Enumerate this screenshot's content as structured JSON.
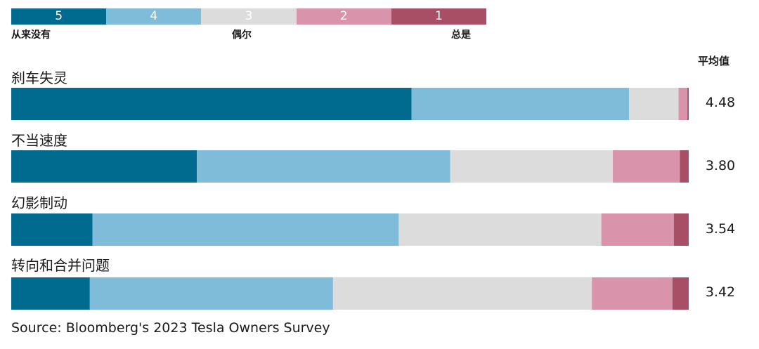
{
  "legend": {
    "items": [
      {
        "score": "5",
        "color": "#006b8f"
      },
      {
        "score": "4",
        "color": "#7ebcd9"
      },
      {
        "score": "3",
        "color": "#dcdcdc"
      },
      {
        "score": "2",
        "color": "#d993ab"
      },
      {
        "score": "1",
        "color": "#a84f65"
      }
    ],
    "label_never": "从来没有",
    "label_sometimes": "偶尔",
    "label_always": "总是"
  },
  "avg_header": "平均值",
  "source": "Source: Bloomberg's 2023 Tesla Owners Survey",
  "chart_data": {
    "type": "bar",
    "orientation": "horizontal",
    "stacked": true,
    "unit": "percent of respondents",
    "categories": [
      "刹车失灵",
      "不当速度",
      "幻影制动",
      "转向和合并问题"
    ],
    "series": [
      {
        "name": "5",
        "color": "#006b8f",
        "values": [
          59.1,
          27.4,
          12.0,
          11.6
        ]
      },
      {
        "name": "4",
        "color": "#7ebcd9",
        "values": [
          32.1,
          37.4,
          45.2,
          35.9
        ]
      },
      {
        "name": "3",
        "color": "#dcdcdc",
        "values": [
          7.3,
          24.0,
          29.9,
          38.2
        ]
      },
      {
        "name": "2",
        "color": "#d993ab",
        "values": [
          1.3,
          9.9,
          10.7,
          11.9
        ]
      },
      {
        "name": "1",
        "color": "#a84f65",
        "values": [
          0.2,
          1.3,
          2.2,
          2.4
        ]
      }
    ],
    "averages": [
      "4.48",
      "3.80",
      "3.54",
      "3.42"
    ],
    "xlim": [
      0,
      100
    ]
  }
}
